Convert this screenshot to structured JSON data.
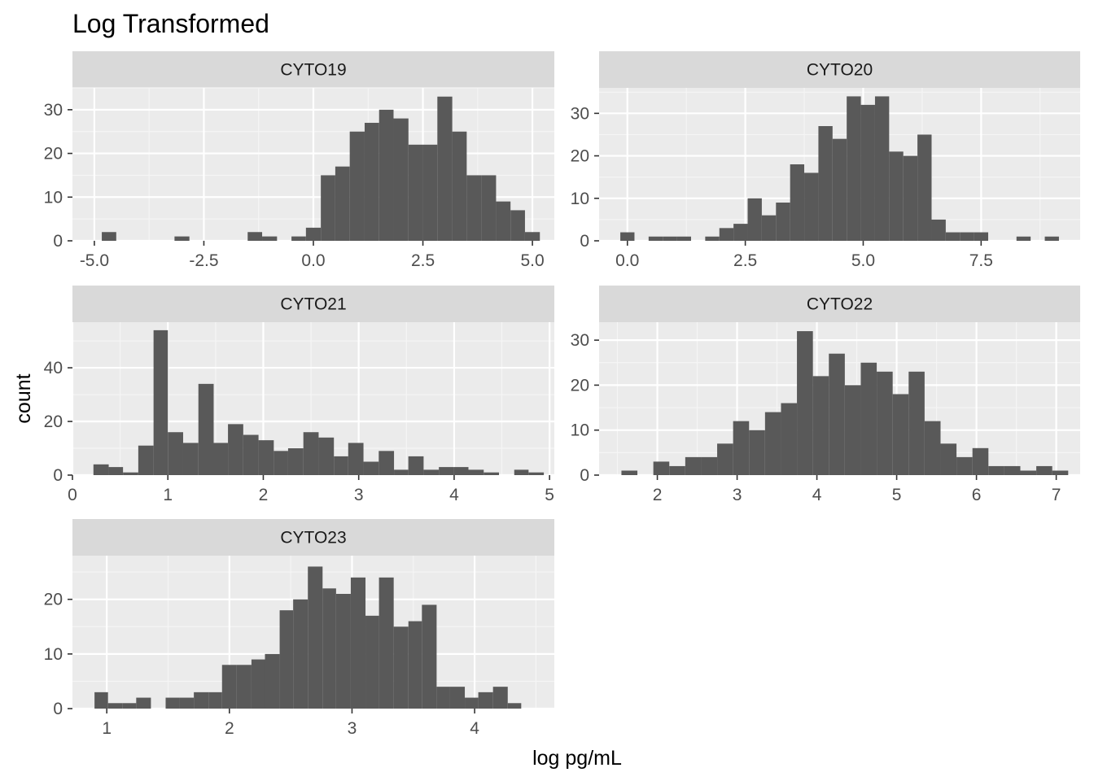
{
  "chart_data": {
    "type": "bar",
    "title": "Log Transformed",
    "xlabel": "log pg/mL",
    "ylabel": "count",
    "grid": true,
    "legend": "none",
    "colors": {
      "bar": "#595959",
      "panel_bg": "#ebebeb",
      "strip_bg": "#d9d9d9",
      "grid_major": "#ffffff",
      "grid_minor": "#f5f5f5"
    },
    "facets": [
      {
        "name": "CYTO19",
        "xlim": [
          -5.5,
          5.5
        ],
        "ylim": [
          0,
          35
        ],
        "xticks": [
          -5.0,
          -2.5,
          0.0,
          2.5,
          5.0
        ],
        "xtick_labels": [
          "-5.0",
          "-2.5",
          "0.0",
          "2.5",
          "5.0"
        ],
        "yticks": [
          0,
          10,
          20,
          30
        ],
        "bins": [
          [
            -4.83,
            -4.5,
            2
          ],
          [
            -3.17,
            -2.83,
            1
          ],
          [
            -1.5,
            -1.17,
            2
          ],
          [
            -1.17,
            -0.83,
            1
          ],
          [
            -0.5,
            -0.17,
            1
          ],
          [
            -0.17,
            0.17,
            3
          ],
          [
            0.17,
            0.5,
            15
          ],
          [
            0.5,
            0.83,
            17
          ],
          [
            0.83,
            1.17,
            25
          ],
          [
            1.17,
            1.5,
            27
          ],
          [
            1.5,
            1.83,
            30
          ],
          [
            1.83,
            2.17,
            28
          ],
          [
            2.17,
            2.5,
            22
          ],
          [
            2.5,
            2.83,
            22
          ],
          [
            2.83,
            3.17,
            33
          ],
          [
            3.17,
            3.5,
            25
          ],
          [
            3.5,
            3.83,
            15
          ],
          [
            3.83,
            4.17,
            15
          ],
          [
            4.17,
            4.5,
            9
          ],
          [
            4.5,
            4.83,
            7
          ],
          [
            4.83,
            5.17,
            2
          ]
        ]
      },
      {
        "name": "CYTO20",
        "xlim": [
          -0.6,
          9.6
        ],
        "ylim": [
          0,
          36
        ],
        "xticks": [
          0.0,
          2.5,
          5.0,
          7.5
        ],
        "xtick_labels": [
          "0.0",
          "2.5",
          "5.0",
          "7.5"
        ],
        "yticks": [
          0,
          10,
          20,
          30
        ],
        "bins": [
          [
            -0.15,
            0.15,
            2
          ],
          [
            0.45,
            0.75,
            1
          ],
          [
            0.75,
            1.05,
            1
          ],
          [
            1.05,
            1.35,
            1
          ],
          [
            1.65,
            1.95,
            1
          ],
          [
            1.95,
            2.25,
            3
          ],
          [
            2.25,
            2.55,
            4
          ],
          [
            2.55,
            2.85,
            10
          ],
          [
            2.85,
            3.15,
            6
          ],
          [
            3.15,
            3.45,
            9
          ],
          [
            3.45,
            3.75,
            18
          ],
          [
            3.75,
            4.05,
            16
          ],
          [
            4.05,
            4.35,
            27
          ],
          [
            4.35,
            4.65,
            24
          ],
          [
            4.65,
            4.95,
            34
          ],
          [
            4.95,
            5.25,
            32
          ],
          [
            5.25,
            5.55,
            34
          ],
          [
            5.55,
            5.85,
            21
          ],
          [
            5.85,
            6.15,
            20
          ],
          [
            6.15,
            6.45,
            25
          ],
          [
            6.45,
            6.75,
            5
          ],
          [
            6.75,
            7.05,
            2
          ],
          [
            7.05,
            7.35,
            2
          ],
          [
            7.35,
            7.65,
            2
          ],
          [
            8.25,
            8.55,
            1
          ],
          [
            8.85,
            9.15,
            1
          ]
        ]
      },
      {
        "name": "CYTO21",
        "xlim": [
          0,
          5.05
        ],
        "ylim": [
          0,
          57
        ],
        "xticks": [
          0,
          1,
          2,
          3,
          4,
          5
        ],
        "xtick_labels": [
          "0",
          "1",
          "2",
          "3",
          "4",
          "5"
        ],
        "yticks": [
          0,
          20,
          40
        ],
        "bins": [
          [
            0.22,
            0.38,
            4
          ],
          [
            0.38,
            0.53,
            3
          ],
          [
            0.53,
            0.69,
            1
          ],
          [
            0.69,
            0.85,
            11
          ],
          [
            0.85,
            1.0,
            54
          ],
          [
            1.0,
            1.16,
            16
          ],
          [
            1.16,
            1.32,
            12
          ],
          [
            1.32,
            1.48,
            34
          ],
          [
            1.48,
            1.63,
            12
          ],
          [
            1.63,
            1.79,
            19
          ],
          [
            1.79,
            1.95,
            15
          ],
          [
            1.95,
            2.11,
            13
          ],
          [
            2.11,
            2.26,
            9
          ],
          [
            2.26,
            2.42,
            10
          ],
          [
            2.42,
            2.58,
            16
          ],
          [
            2.58,
            2.74,
            14
          ],
          [
            2.74,
            2.89,
            7
          ],
          [
            2.89,
            3.05,
            12
          ],
          [
            3.05,
            3.21,
            5
          ],
          [
            3.21,
            3.37,
            9
          ],
          [
            3.37,
            3.52,
            2
          ],
          [
            3.52,
            3.68,
            7
          ],
          [
            3.68,
            3.84,
            2
          ],
          [
            3.84,
            4.0,
            3
          ],
          [
            4.0,
            4.15,
            3
          ],
          [
            4.15,
            4.31,
            2
          ],
          [
            4.31,
            4.47,
            1
          ],
          [
            4.47,
            4.63,
            0
          ],
          [
            4.63,
            4.78,
            2
          ],
          [
            4.78,
            4.94,
            1
          ]
        ]
      },
      {
        "name": "CYTO22",
        "xlim": [
          1.27,
          7.3
        ],
        "ylim": [
          0,
          34
        ],
        "xticks": [
          2,
          3,
          4,
          5,
          6,
          7
        ],
        "xtick_labels": [
          "2",
          "3",
          "4",
          "5",
          "6",
          "7"
        ],
        "yticks": [
          0,
          10,
          20,
          30
        ],
        "bins": [
          [
            1.55,
            1.75,
            1
          ],
          [
            1.75,
            1.95,
            0
          ],
          [
            1.95,
            2.15,
            3
          ],
          [
            2.15,
            2.35,
            2
          ],
          [
            2.35,
            2.55,
            4
          ],
          [
            2.55,
            2.75,
            4
          ],
          [
            2.75,
            2.95,
            7
          ],
          [
            2.95,
            3.15,
            12
          ],
          [
            3.15,
            3.35,
            10
          ],
          [
            3.35,
            3.55,
            14
          ],
          [
            3.55,
            3.75,
            16
          ],
          [
            3.75,
            3.95,
            32
          ],
          [
            3.95,
            4.15,
            22
          ],
          [
            4.15,
            4.35,
            27
          ],
          [
            4.35,
            4.55,
            20
          ],
          [
            4.55,
            4.75,
            25
          ],
          [
            4.75,
            4.95,
            23
          ],
          [
            4.95,
            5.15,
            18
          ],
          [
            5.15,
            5.35,
            23
          ],
          [
            5.35,
            5.55,
            12
          ],
          [
            5.55,
            5.75,
            7
          ],
          [
            5.75,
            5.95,
            4
          ],
          [
            5.95,
            6.15,
            6
          ],
          [
            6.15,
            6.35,
            2
          ],
          [
            6.35,
            6.55,
            2
          ],
          [
            6.55,
            6.75,
            1
          ],
          [
            6.75,
            6.95,
            2
          ],
          [
            6.95,
            7.15,
            1
          ]
        ]
      },
      {
        "name": "CYTO23",
        "xlim": [
          0.72,
          4.65
        ],
        "ylim": [
          0,
          28
        ],
        "xticks": [
          1,
          2,
          3,
          4
        ],
        "xtick_labels": [
          "1",
          "2",
          "3",
          "4"
        ],
        "yticks": [
          0,
          10,
          20
        ],
        "bins": [
          [
            0.9,
            1.01,
            3
          ],
          [
            1.01,
            1.13,
            1
          ],
          [
            1.13,
            1.24,
            1
          ],
          [
            1.24,
            1.36,
            2
          ],
          [
            1.48,
            1.59,
            2
          ],
          [
            1.59,
            1.71,
            2
          ],
          [
            1.71,
            1.83,
            3
          ],
          [
            1.83,
            1.94,
            3
          ],
          [
            1.94,
            2.06,
            8
          ],
          [
            2.06,
            2.18,
            8
          ],
          [
            2.18,
            2.29,
            9
          ],
          [
            2.29,
            2.41,
            10
          ],
          [
            2.41,
            2.52,
            18
          ],
          [
            2.52,
            2.64,
            20
          ],
          [
            2.64,
            2.76,
            26
          ],
          [
            2.76,
            2.87,
            22
          ],
          [
            2.87,
            2.99,
            21
          ],
          [
            2.99,
            3.11,
            24
          ],
          [
            3.11,
            3.22,
            17
          ],
          [
            3.22,
            3.34,
            24
          ],
          [
            3.34,
            3.46,
            15
          ],
          [
            3.46,
            3.57,
            16
          ],
          [
            3.57,
            3.69,
            19
          ],
          [
            3.69,
            3.8,
            4
          ],
          [
            3.8,
            3.92,
            4
          ],
          [
            3.92,
            4.03,
            2
          ],
          [
            4.03,
            4.15,
            3
          ],
          [
            4.15,
            4.27,
            4
          ],
          [
            4.27,
            4.38,
            1
          ]
        ]
      }
    ]
  }
}
